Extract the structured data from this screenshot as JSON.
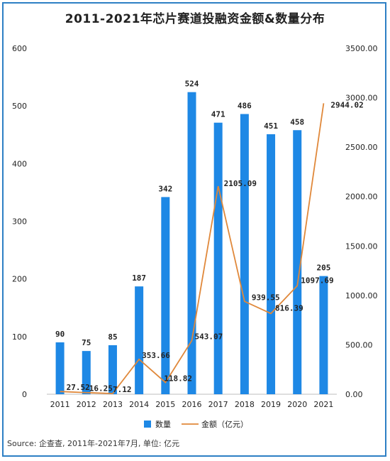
{
  "title": "2011-2021年芯片赛道投融资金额&数量分布",
  "source": "Source: 企查查, 2011年-2021年7月, 单位: 亿元",
  "colors": {
    "bar": "#1e88e5",
    "line": "#e0883a",
    "frame": "#2d7fc4",
    "axis": "#bdbdbd"
  },
  "chart_data": {
    "type": "bar",
    "categories": [
      "2011",
      "2012",
      "2013",
      "2014",
      "2015",
      "2016",
      "2017",
      "2018",
      "2019",
      "2020",
      "2021"
    ],
    "series": [
      {
        "name": "数量",
        "type": "bar",
        "axis": "left",
        "values": [
          90,
          75,
          85,
          187,
          342,
          524,
          471,
          486,
          451,
          458,
          205
        ],
        "labels": [
          "90",
          "75",
          "85",
          "187",
          "342",
          "524",
          "471",
          "486",
          "451",
          "458",
          "205"
        ]
      },
      {
        "name": "金额（亿元）",
        "type": "line",
        "axis": "right",
        "values": [
          27.52,
          16.25,
          7.12,
          353.66,
          118.82,
          543.07,
          2105.09,
          939.55,
          816.39,
          1097.69,
          2944.02
        ],
        "labels": [
          "27.52",
          "16.25",
          "7.12",
          "353.66",
          "118.82",
          "543.07",
          "2105.09",
          "939.55",
          "816.39",
          "1097.69",
          "2944.02"
        ]
      }
    ],
    "ylim_left": [
      0,
      600
    ],
    "yticks_left": [
      "0",
      "100",
      "200",
      "300",
      "400",
      "500",
      "600"
    ],
    "ylim_right": [
      0,
      3500
    ],
    "yticks_right": [
      "0.00",
      "500.00",
      "1000.00",
      "1500.00",
      "2000.00",
      "2500.00",
      "3000.00",
      "3500.00"
    ],
    "grid": false,
    "legend": "bottom"
  }
}
